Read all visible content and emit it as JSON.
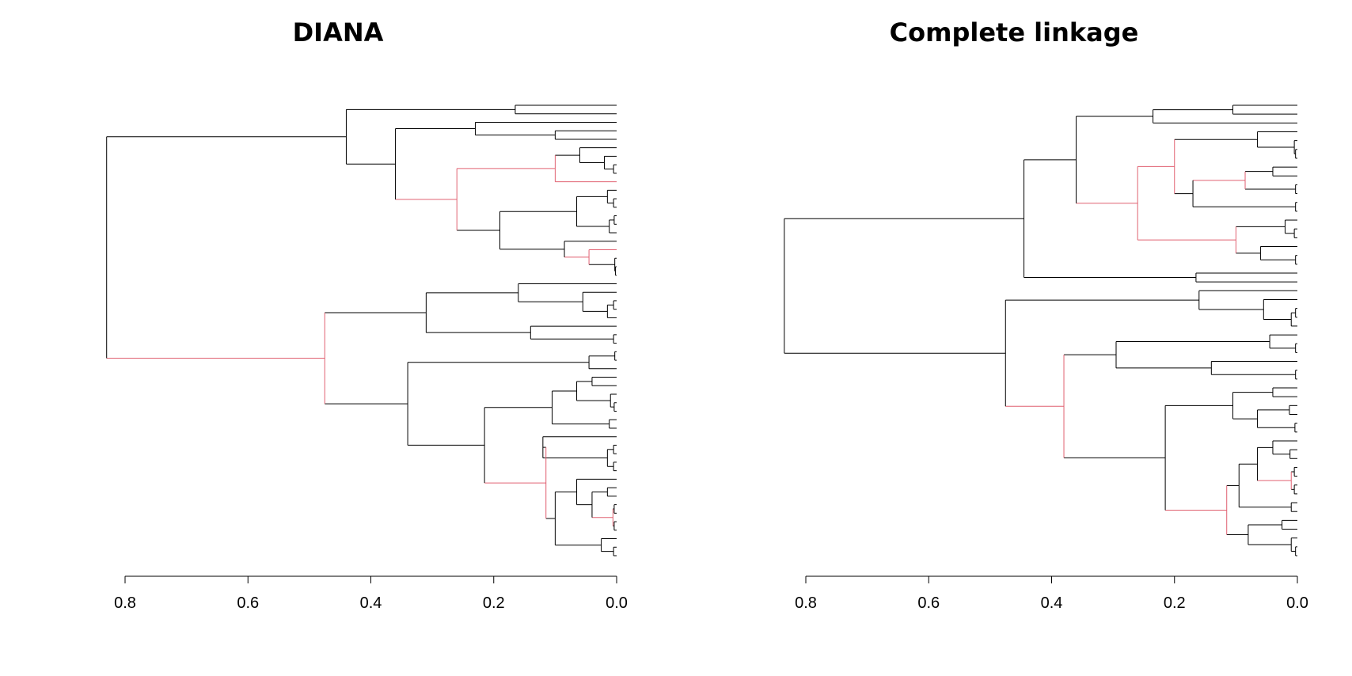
{
  "chart_data": [
    {
      "type": "dendrogram",
      "title": "DIANA",
      "orientation": "horizontal",
      "xlim": [
        0.8,
        0.0
      ],
      "ticks": [
        "0.8",
        "0.6",
        "0.4",
        "0.2",
        "0.0"
      ],
      "tick_values": [
        0.8,
        0.6,
        0.4,
        0.2,
        0.0
      ],
      "highlight_color": "#e06070",
      "line_color": "#000000",
      "tree": [
        0.83,
        [
          0.44,
          [
            0.165,
            "L",
            "L"
          ],
          [
            0.36,
            [
              0.23,
              "L",
              [
                0.1,
                "L",
                "L"
              ]
            ],
            {
              "h": 0.26,
              "c": "red",
              "k": [
                {
                  "h": 0.1,
                  "c": "red",
                  "k": [
                    [
                      0.06,
                      "L",
                      [
                        0.02,
                        "L",
                        [
                          0.005,
                          "L",
                          "L"
                        ]
                      ]
                    ],
                    "L"
                  ]
                },
                [
                  0.19,
                  [
                    0.065,
                    [
                      0.015,
                      "L",
                      [
                        0.005,
                        "L",
                        "L"
                      ]
                    ],
                    [
                      0.012,
                      [
                        0.004,
                        "L",
                        "L"
                      ],
                      "L"
                    ]
                  ],
                  [
                    0.085,
                    "L",
                    {
                      "h": 0.045,
                      "c": "red",
                      "k": [
                        "L",
                        [
                          0.003,
                          "L",
                          [
                            0.002,
                            "L",
                            "L"
                          ]
                        ]
                      ]
                    }
                  ]
                ]
              ]
            }
          ]
        ],
        {
          "h": 0.475,
          "c": "red",
          "k": [
            [
              0.31,
              [
                0.16,
                "L",
                [
                  0.055,
                  "L",
                  [
                    0.015,
                    [
                      0.005,
                      "L",
                      "L"
                    ],
                    "L"
                  ]
                ]
              ],
              [
                0.14,
                "L",
                [
                  0.005,
                  "L",
                  "L"
                ]
              ]
            ],
            [
              0.34,
              [
                0.045,
                [
                  0.003,
                  "L",
                  "L"
                ],
                "L"
              ],
              [
                0.215,
                [
                  0.105,
                  [
                    0.065,
                    [
                      0.04,
                      "L",
                      "L"
                    ],
                    [
                      0.01,
                      "L",
                      [
                        0.004,
                        "L",
                        "L"
                      ]
                    ]
                  ],
                  [
                    0.012,
                    "L",
                    "L"
                  ]
                ],
                {
                  "h": 0.115,
                  "c": "red",
                  "k": [
                    [
                      0.12,
                      "L",
                      [
                        0.015,
                        [
                          0.005,
                          "L",
                          "L"
                        ],
                        [
                          0.005,
                          "L",
                          "L"
                        ]
                      ]
                    ],
                    [
                      0.1,
                      [
                        0.065,
                        "L",
                        [
                          0.04,
                          [
                            0.015,
                            "L",
                            "L"
                          ],
                          {
                            "h": 0.006,
                            "c": "red",
                            "k": [
                              [
                                0.004,
                                "L",
                                "L"
                              ],
                              [
                                0.004,
                                "L",
                                "L"
                              ]
                            ]
                          }
                        ]
                      ],
                      [
                        0.025,
                        "L",
                        [
                          0.005,
                          "L",
                          "L"
                        ]
                      ]
                    ]
                  ]
                }
              ]
            ]
          ]
        }
      ]
    },
    {
      "type": "dendrogram",
      "title": "Complete linkage",
      "orientation": "horizontal",
      "xlim": [
        0.8,
        0.0
      ],
      "ticks": [
        "0.8",
        "0.6",
        "0.4",
        "0.2",
        "0.0"
      ],
      "tick_values": [
        0.8,
        0.6,
        0.4,
        0.2,
        0.0
      ],
      "highlight_color": "#e06070",
      "line_color": "#000000",
      "tree": [
        0.835,
        [
          0.445,
          [
            0.36,
            [
              0.235,
              [
                0.105,
                "L",
                "L"
              ],
              "L"
            ],
            {
              "h": 0.26,
              "c": "red",
              "k": [
                {
                  "h": 0.2,
                  "c": "red",
                  "k": [
                    [
                      0.065,
                      "L",
                      [
                        0.005,
                        "L",
                        [
                          0.003,
                          "L",
                          "L"
                        ]
                      ]
                    ],
                    [
                      0.17,
                      {
                        "h": 0.085,
                        "c": "red",
                        "k": [
                          [
                            0.04,
                            "L",
                            "L"
                          ],
                          [
                            0.003,
                            "L",
                            "L"
                          ]
                        ]
                      },
                      [
                        0.003,
                        "L",
                        "L"
                      ]
                    ]
                  ]
                },
                {
                  "h": 0.1,
                  "c": "red",
                  "k": [
                    [
                      0.02,
                      "L",
                      [
                        0.005,
                        "L",
                        "L"
                      ]
                    ],
                    [
                      0.06,
                      "L",
                      [
                        0.003,
                        "L",
                        "L"
                      ]
                    ]
                  ]
                }
              ]
            }
          ],
          [
            0.165,
            "L",
            "L"
          ]
        ],
        [
          0.475,
          [
            0.16,
            "L",
            [
              0.055,
              "L",
              [
                0.01,
                [
                  0.003,
                  "L",
                  "L"
                ],
                "L"
              ]
            ]
          ],
          {
            "h": 0.38,
            "c": "red",
            "k": [
              [
                0.295,
                [
                  0.045,
                  "L",
                  [
                    0.003,
                    "L",
                    "L"
                  ]
                ],
                [
                  0.14,
                  "L",
                  [
                    0.003,
                    "L",
                    "L"
                  ]
                ]
              ],
              [
                0.215,
                [
                  0.105,
                  [
                    0.04,
                    "L",
                    "L"
                  ],
                  [
                    0.065,
                    [
                      0.013,
                      "L",
                      "L"
                    ],
                    [
                      0.004,
                      "L",
                      "L"
                    ]
                  ]
                ],
                {
                  "h": 0.115,
                  "c": "red",
                  "k": [
                    [
                      0.095,
                      [
                        0.065,
                        [
                          0.04,
                          "L",
                          [
                            0.012,
                            "L",
                            "L"
                          ]
                        ],
                        {
                          "h": 0.01,
                          "c": "red",
                          "k": [
                            [
                              0.005,
                              "L",
                              "L"
                            ],
                            [
                              0.005,
                              "L",
                              "L"
                            ]
                          ]
                        }
                      ],
                      [
                        0.01,
                        "L",
                        "L"
                      ]
                    ],
                    [
                      0.08,
                      [
                        0.025,
                        "L",
                        "L"
                      ],
                      [
                        0.01,
                        "L",
                        [
                          0.003,
                          "L",
                          "L"
                        ]
                      ]
                    ]
                  ]
                }
              ]
            ]
          }
        ]
      ]
    }
  ]
}
